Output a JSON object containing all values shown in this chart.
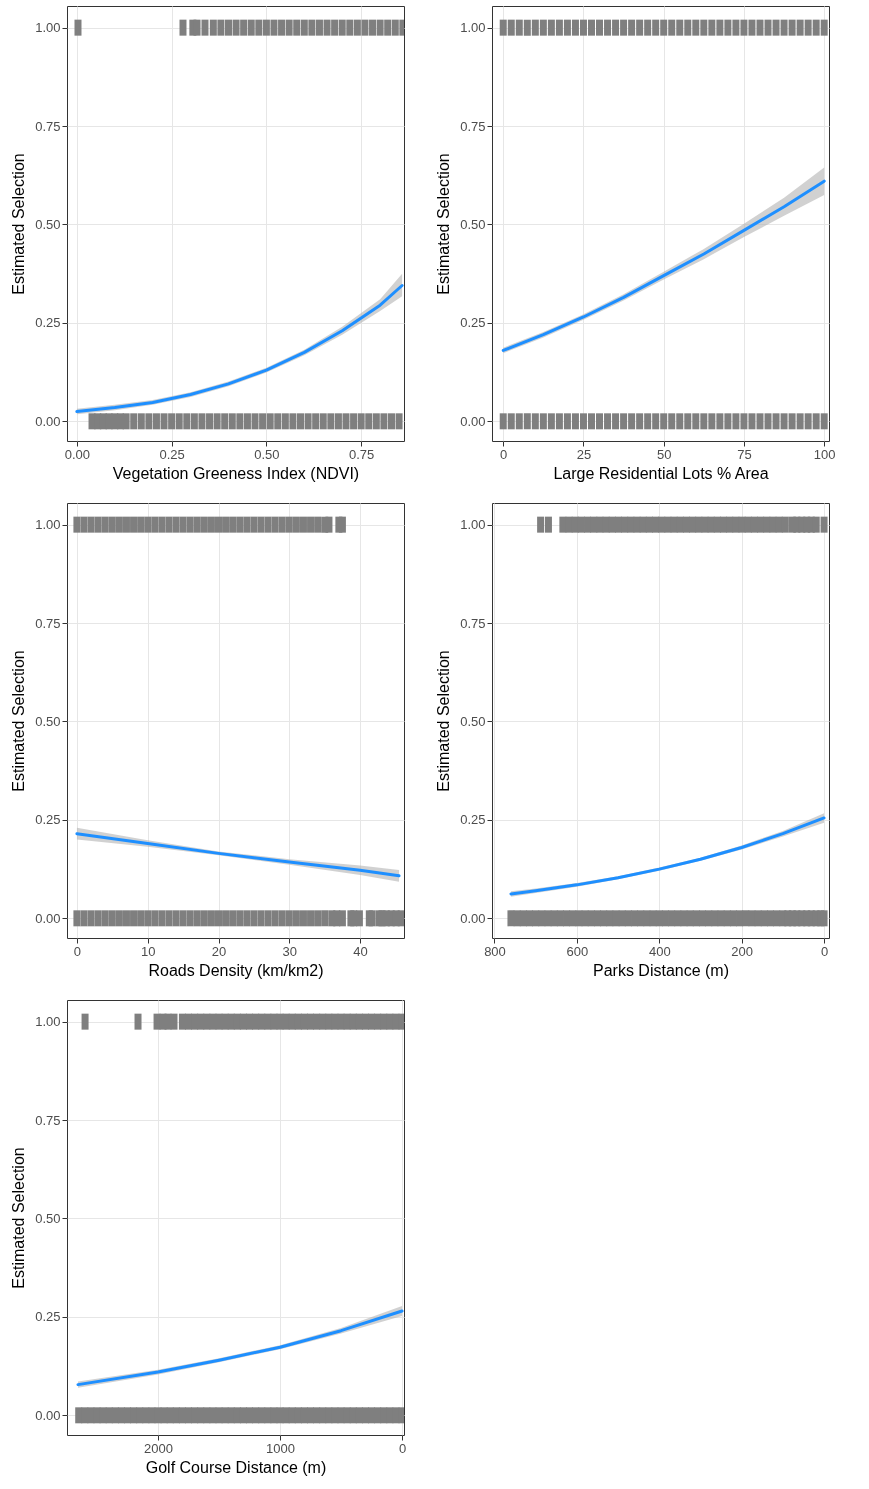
{
  "chart_data": [
    {
      "type": "line",
      "xlabel": "Vegetation Greeness Index (NDVI)",
      "ylabel": "Estimated Selection",
      "grid": true,
      "xlim": [
        -0.026,
        0.863
      ],
      "xticks": [
        {
          "value": 0,
          "label": "0.00"
        },
        {
          "value": 0.25,
          "label": "0.25"
        },
        {
          "value": 0.5,
          "label": "0.50"
        },
        {
          "value": 0.75,
          "label": "0.75"
        }
      ],
      "ylim": [
        -0.05,
        1.055
      ],
      "yticks": [
        {
          "value": 0,
          "label": "0.00"
        },
        {
          "value": 0.25,
          "label": "0.25"
        },
        {
          "value": 0.5,
          "label": "0.50"
        },
        {
          "value": 0.75,
          "label": "0.75"
        },
        {
          "value": 1,
          "label": "1.00"
        }
      ],
      "series": [
        {
          "type": "line",
          "color": "#1e8fff",
          "x": [
            0,
            0.1,
            0.2,
            0.3,
            0.4,
            0.5,
            0.6,
            0.7,
            0.8,
            0.858
          ],
          "values": [
            0.025,
            0.035,
            0.048,
            0.068,
            0.095,
            0.13,
            0.175,
            0.23,
            0.295,
            0.345
          ],
          "lower": [
            0.018,
            0.028,
            0.042,
            0.062,
            0.089,
            0.124,
            0.168,
            0.22,
            0.28,
            0.318
          ],
          "upper": [
            0.032,
            0.042,
            0.054,
            0.074,
            0.101,
            0.136,
            0.182,
            0.24,
            0.31,
            0.375
          ]
        },
        {
          "type": "scatter",
          "color": "#7f7f7f",
          "x": [
            0.003,
            0.28,
            0.306,
            0.317,
            0.338,
            0.36,
            0.38,
            0.4,
            0.42,
            0.44,
            0.46,
            0.48,
            0.5,
            0.52,
            0.54,
            0.56,
            0.58,
            0.6,
            0.62,
            0.64,
            0.66,
            0.68,
            0.7,
            0.72,
            0.74,
            0.76,
            0.78,
            0.8,
            0.82,
            0.84,
            0.86
          ],
          "values": [
            1,
            1,
            1,
            1,
            1,
            1,
            1,
            1,
            1,
            1,
            1,
            1,
            1,
            1,
            1,
            1,
            1,
            1,
            1,
            1,
            1,
            1,
            1,
            1,
            1,
            1,
            1,
            1,
            1,
            1,
            1
          ]
        },
        {
          "type": "scatter",
          "color": "#7f7f7f",
          "x": [
            0.04,
            0.055,
            0.07,
            0.085,
            0.1,
            0.115,
            0.13,
            0.15,
            0.17,
            0.19,
            0.21,
            0.23,
            0.25,
            0.27,
            0.29,
            0.31,
            0.33,
            0.35,
            0.37,
            0.39,
            0.41,
            0.43,
            0.45,
            0.47,
            0.49,
            0.51,
            0.53,
            0.55,
            0.57,
            0.59,
            0.61,
            0.63,
            0.65,
            0.67,
            0.69,
            0.71,
            0.73,
            0.75,
            0.77,
            0.79,
            0.81,
            0.83,
            0.85
          ],
          "values": [
            0,
            0,
            0,
            0,
            0,
            0,
            0,
            0,
            0,
            0,
            0,
            0,
            0,
            0,
            0,
            0,
            0,
            0,
            0,
            0,
            0,
            0,
            0,
            0,
            0,
            0,
            0,
            0,
            0,
            0,
            0,
            0,
            0,
            0,
            0,
            0,
            0,
            0,
            0,
            0,
            0,
            0,
            0
          ]
        }
      ]
    },
    {
      "type": "line",
      "xlabel": "Large Residential Lots % Area",
      "ylabel": "Estimated Selection",
      "grid": true,
      "xlim": [
        -3.5,
        101.5
      ],
      "xticks": [
        0,
        25,
        50,
        75,
        100
      ],
      "ylim": [
        -0.05,
        1.055
      ],
      "yticks": [
        {
          "value": 0,
          "label": "0.00"
        },
        {
          "value": 0.25,
          "label": "0.25"
        },
        {
          "value": 0.5,
          "label": "0.50"
        },
        {
          "value": 0.75,
          "label": "0.75"
        },
        {
          "value": 1,
          "label": "1.00"
        }
      ],
      "series": [
        {
          "type": "line",
          "color": "#1e8fff",
          "x": [
            0,
            12.5,
            25,
            37.5,
            50,
            62.5,
            75,
            87.5,
            100
          ],
          "values": [
            0.18,
            0.22,
            0.265,
            0.315,
            0.37,
            0.425,
            0.485,
            0.545,
            0.61
          ],
          "lower": [
            0.173,
            0.213,
            0.258,
            0.307,
            0.36,
            0.412,
            0.468,
            0.522,
            0.575
          ],
          "upper": [
            0.187,
            0.227,
            0.272,
            0.323,
            0.38,
            0.438,
            0.502,
            0.568,
            0.645
          ]
        },
        {
          "type": "scatter",
          "color": "#7f7f7f",
          "x": [
            0,
            2.5,
            5,
            7.5,
            10,
            12.5,
            15,
            17.5,
            20,
            22.5,
            25,
            27.5,
            30,
            32.5,
            35,
            37.5,
            40,
            42.5,
            45,
            47.5,
            50,
            52.5,
            55,
            57.5,
            60,
            62.5,
            65,
            67.5,
            70,
            72.5,
            75,
            77.5,
            80,
            82.5,
            85,
            87.5,
            90,
            92.5,
            95,
            97.5,
            100
          ],
          "values": [
            1,
            1,
            1,
            1,
            1,
            1,
            1,
            1,
            1,
            1,
            1,
            1,
            1,
            1,
            1,
            1,
            1,
            1,
            1,
            1,
            1,
            1,
            1,
            1,
            1,
            1,
            1,
            1,
            1,
            1,
            1,
            1,
            1,
            1,
            1,
            1,
            1,
            1,
            1,
            1,
            1
          ]
        },
        {
          "type": "scatter",
          "color": "#7f7f7f",
          "x": [
            0,
            2.5,
            5,
            7.5,
            10,
            12.5,
            15,
            17.5,
            20,
            22.5,
            25,
            27.5,
            30,
            32.5,
            35,
            37.5,
            40,
            42.5,
            45,
            47.5,
            50,
            52.5,
            55,
            57.5,
            60,
            62.5,
            65,
            67.5,
            70,
            72.5,
            75,
            77.5,
            80,
            82.5,
            85,
            87.5,
            90,
            92.5,
            95,
            97.5,
            100
          ],
          "values": [
            0,
            0,
            0,
            0,
            0,
            0,
            0,
            0,
            0,
            0,
            0,
            0,
            0,
            0,
            0,
            0,
            0,
            0,
            0,
            0,
            0,
            0,
            0,
            0,
            0,
            0,
            0,
            0,
            0,
            0,
            0,
            0,
            0,
            0,
            0,
            0,
            0,
            0,
            0,
            0,
            0
          ]
        }
      ]
    },
    {
      "type": "line",
      "xlabel": "Roads Density (km/km2)",
      "ylabel": "Estimated Selection",
      "grid": true,
      "xlim": [
        -1.4,
        46.2
      ],
      "xticks": [
        0,
        10,
        20,
        30,
        40
      ],
      "ylim": [
        -0.05,
        1.055
      ],
      "yticks": [
        {
          "value": 0,
          "label": "0.00"
        },
        {
          "value": 0.25,
          "label": "0.25"
        },
        {
          "value": 0.5,
          "label": "0.50"
        },
        {
          "value": 0.75,
          "label": "0.75"
        },
        {
          "value": 1,
          "label": "1.00"
        }
      ],
      "series": [
        {
          "type": "line",
          "color": "#1e8fff",
          "x": [
            0,
            10,
            20,
            30,
            40,
            45.5
          ],
          "values": [
            0.215,
            0.19,
            0.165,
            0.143,
            0.122,
            0.108
          ],
          "lower": [
            0.2,
            0.182,
            0.16,
            0.136,
            0.11,
            0.093
          ],
          "upper": [
            0.23,
            0.198,
            0.17,
            0.15,
            0.134,
            0.123
          ]
        },
        {
          "type": "scatter",
          "color": "#7f7f7f",
          "x": [
            0,
            1,
            2,
            3,
            4,
            5,
            6,
            7,
            8,
            9,
            10,
            11,
            12,
            13,
            14,
            15,
            16,
            17,
            18,
            19,
            20,
            21,
            22,
            23,
            24,
            25,
            26,
            27,
            28,
            29,
            30,
            31,
            32,
            33,
            34,
            35,
            35.6,
            37,
            37.5
          ],
          "values": [
            1,
            1,
            1,
            1,
            1,
            1,
            1,
            1,
            1,
            1,
            1,
            1,
            1,
            1,
            1,
            1,
            1,
            1,
            1,
            1,
            1,
            1,
            1,
            1,
            1,
            1,
            1,
            1,
            1,
            1,
            1,
            1,
            1,
            1,
            1,
            1,
            1,
            1,
            1
          ]
        },
        {
          "type": "scatter",
          "color": "#7f7f7f",
          "x": [
            0,
            1,
            2,
            3,
            4,
            5,
            6,
            7,
            8,
            9,
            10,
            11,
            12,
            13,
            14,
            15,
            16,
            17,
            18,
            19,
            20,
            21,
            22,
            23,
            24,
            25,
            26,
            27,
            28,
            29,
            30,
            31,
            32,
            33,
            34,
            35,
            36,
            36.7,
            37.5,
            38.7,
            39.1,
            39.9,
            41.3,
            41.7,
            42.7,
            43.1,
            43.7,
            44.4,
            45.1,
            45.8
          ],
          "values": [
            0,
            0,
            0,
            0,
            0,
            0,
            0,
            0,
            0,
            0,
            0,
            0,
            0,
            0,
            0,
            0,
            0,
            0,
            0,
            0,
            0,
            0,
            0,
            0,
            0,
            0,
            0,
            0,
            0,
            0,
            0,
            0,
            0,
            0,
            0,
            0,
            0,
            0,
            0,
            0,
            0,
            0,
            0,
            0,
            0,
            0,
            0,
            0,
            0,
            0
          ]
        }
      ]
    },
    {
      "type": "line",
      "xlabel": "Parks Distance (m)",
      "ylabel": "Estimated Selection",
      "grid": true,
      "xlim": [
        806,
        -12
      ],
      "xticks": [
        800,
        600,
        400,
        200,
        0
      ],
      "ylim": [
        -0.05,
        1.055
      ],
      "yticks": [
        {
          "value": 0,
          "label": "0.00"
        },
        {
          "value": 0.25,
          "label": "0.25"
        },
        {
          "value": 0.5,
          "label": "0.50"
        },
        {
          "value": 0.75,
          "label": "0.75"
        },
        {
          "value": 1,
          "label": "1.00"
        }
      ],
      "series": [
        {
          "type": "line",
          "color": "#1e8fff",
          "x": [
            760,
            700,
            600,
            500,
            400,
            300,
            200,
            100,
            0
          ],
          "values": [
            0.062,
            0.07,
            0.085,
            0.103,
            0.125,
            0.15,
            0.18,
            0.215,
            0.255
          ],
          "lower": [
            0.055,
            0.064,
            0.08,
            0.099,
            0.121,
            0.146,
            0.175,
            0.208,
            0.243
          ],
          "upper": [
            0.069,
            0.076,
            0.09,
            0.107,
            0.129,
            0.154,
            0.185,
            0.222,
            0.267
          ]
        },
        {
          "type": "scatter",
          "color": "#7f7f7f",
          "x": [
            688,
            669,
            634,
            619,
            604,
            589,
            574,
            559,
            544,
            529,
            514,
            499,
            484,
            469,
            454,
            439,
            424,
            409,
            394,
            379,
            364,
            349,
            334,
            319,
            304,
            289,
            274,
            259,
            244,
            229,
            214,
            199,
            184,
            169,
            154,
            139,
            124,
            109,
            94,
            77,
            66,
            54,
            42,
            31,
            19,
            0
          ],
          "values": [
            1,
            1,
            1,
            1,
            1,
            1,
            1,
            1,
            1,
            1,
            1,
            1,
            1,
            1,
            1,
            1,
            1,
            1,
            1,
            1,
            1,
            1,
            1,
            1,
            1,
            1,
            1,
            1,
            1,
            1,
            1,
            1,
            1,
            1,
            1,
            1,
            1,
            1,
            1,
            1,
            1,
            1,
            1,
            1,
            1,
            1
          ]
        },
        {
          "type": "scatter",
          "color": "#7f7f7f",
          "x": [
            760,
            745,
            730,
            715,
            700,
            685,
            670,
            655,
            640,
            625,
            610,
            595,
            580,
            565,
            550,
            535,
            520,
            505,
            490,
            475,
            460,
            445,
            430,
            415,
            400,
            385,
            370,
            355,
            340,
            325,
            310,
            295,
            280,
            265,
            250,
            235,
            220,
            205,
            190,
            175,
            160,
            145,
            130,
            115,
            100,
            88,
            77,
            66,
            54,
            42,
            31,
            19,
            8,
            0
          ],
          "values": [
            0,
            0,
            0,
            0,
            0,
            0,
            0,
            0,
            0,
            0,
            0,
            0,
            0,
            0,
            0,
            0,
            0,
            0,
            0,
            0,
            0,
            0,
            0,
            0,
            0,
            0,
            0,
            0,
            0,
            0,
            0,
            0,
            0,
            0,
            0,
            0,
            0,
            0,
            0,
            0,
            0,
            0,
            0,
            0,
            0,
            0,
            0,
            0,
            0,
            0,
            0,
            0,
            0,
            0
          ]
        }
      ]
    },
    {
      "type": "line",
      "xlabel": "Golf Course Distance (m)",
      "ylabel": "Estimated Selection",
      "grid": true,
      "xlim": [
        2746,
        -16
      ],
      "xticks": [
        {
          "value": 2000,
          "label": "2000"
        },
        {
          "value": 1000,
          "label": "1000"
        },
        0
      ],
      "ylim": [
        -0.05,
        1.055
      ],
      "yticks": [
        {
          "value": 0,
          "label": "0.00"
        },
        {
          "value": 0.25,
          "label": "0.25"
        },
        {
          "value": 0.5,
          "label": "0.50"
        },
        {
          "value": 0.75,
          "label": "0.75"
        },
        {
          "value": 1,
          "label": "1.00"
        }
      ],
      "series": [
        {
          "type": "line",
          "color": "#1e8fff",
          "x": [
            2656,
            2000,
            1500,
            1000,
            500,
            0
          ],
          "values": [
            0.078,
            0.11,
            0.14,
            0.173,
            0.215,
            0.265
          ],
          "lower": [
            0.07,
            0.104,
            0.135,
            0.168,
            0.208,
            0.252
          ],
          "upper": [
            0.086,
            0.116,
            0.145,
            0.178,
            0.222,
            0.278
          ]
        },
        {
          "type": "scatter",
          "color": "#7f7f7f",
          "x": [
            2598,
            2164,
            2008,
            1959,
            1918,
            1869,
            1800,
            1750,
            1700,
            1650,
            1600,
            1550,
            1500,
            1450,
            1400,
            1350,
            1300,
            1250,
            1200,
            1150,
            1100,
            1050,
            1000,
            950,
            900,
            850,
            800,
            750,
            700,
            650,
            600,
            550,
            500,
            450,
            400,
            350,
            300,
            250,
            200,
            150,
            100,
            50,
            0
          ],
          "values": [
            1,
            1,
            1,
            1,
            1,
            1,
            1,
            1,
            1,
            1,
            1,
            1,
            1,
            1,
            1,
            1,
            1,
            1,
            1,
            1,
            1,
            1,
            1,
            1,
            1,
            1,
            1,
            1,
            1,
            1,
            1,
            1,
            1,
            1,
            1,
            1,
            1,
            1,
            1,
            1,
            1,
            1,
            1
          ]
        },
        {
          "type": "scatter",
          "color": "#7f7f7f",
          "x": [
            2650,
            2600,
            2550,
            2500,
            2450,
            2400,
            2350,
            2300,
            2250,
            2200,
            2150,
            2100,
            2050,
            2000,
            1950,
            1900,
            1850,
            1800,
            1750,
            1700,
            1650,
            1600,
            1550,
            1500,
            1450,
            1400,
            1350,
            1300,
            1250,
            1200,
            1150,
            1100,
            1050,
            1000,
            950,
            900,
            850,
            800,
            750,
            700,
            650,
            600,
            550,
            500,
            450,
            400,
            350,
            300,
            250,
            200,
            150,
            100,
            50,
            0
          ],
          "values": [
            0,
            0,
            0,
            0,
            0,
            0,
            0,
            0,
            0,
            0,
            0,
            0,
            0,
            0,
            0,
            0,
            0,
            0,
            0,
            0,
            0,
            0,
            0,
            0,
            0,
            0,
            0,
            0,
            0,
            0,
            0,
            0,
            0,
            0,
            0,
            0,
            0,
            0,
            0,
            0,
            0,
            0,
            0,
            0,
            0,
            0,
            0,
            0,
            0,
            0,
            0,
            0,
            0,
            0
          ]
        }
      ]
    }
  ]
}
